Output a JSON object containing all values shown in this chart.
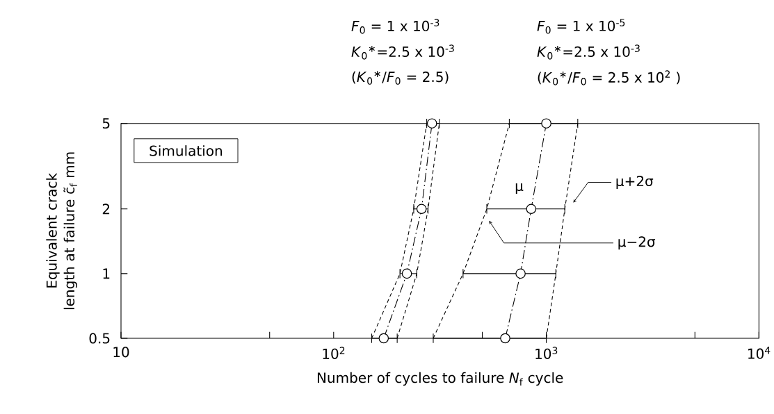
{
  "chart_data": {
    "type": "line",
    "xlabel": "Number of  cycles to failure  *N*$_{f}$   cycle",
    "ylabel": "Equivalent  crack  length at  failure  c̃$_{f}$   mm",
    "log": "xy",
    "xlim": [
      10,
      10000
    ],
    "ylim": [
      0.5,
      5
    ],
    "xticks": [
      10,
      {
        "value": 100,
        "label": "10$^{2}$"
      },
      {
        "value": 1000,
        "label": "10$^{3}$"
      },
      {
        "value": 10000,
        "label": "10$^{4}$"
      },
      {
        "value": 50,
        "label": null
      },
      {
        "value": 500,
        "label": null
      },
      {
        "value": 5000,
        "label": null
      }
    ],
    "yticks": [
      0.5,
      1,
      2,
      5
    ],
    "series": [
      {
        "line_style": "dashed",
        "marker": "none",
        "color": "#000000",
        "x": [
          151,
          205,
          238,
          274
        ],
        "values": [
          0.5,
          1,
          2,
          5
        ]
      },
      {
        "line_style": "dashdot",
        "marker": "circle",
        "color": "#000000",
        "x": [
          172,
          221,
          259,
          290
        ],
        "values": [
          0.5,
          1,
          2,
          5
        ],
        "xerrors": [
          [
            151,
            199
          ],
          [
            205,
            246
          ],
          [
            238,
            278
          ],
          [
            274,
            314
          ]
        ]
      },
      {
        "line_style": "dashed",
        "marker": "none",
        "color": "#000000",
        "x": [
          199,
          246,
          278,
          314
        ],
        "values": [
          0.5,
          1,
          2,
          5
        ]
      },
      {
        "line_style": "dashed",
        "marker": "none",
        "color": "#000000",
        "x": [
          294,
          406,
          525,
          670
        ],
        "values": [
          0.5,
          1,
          2,
          5
        ]
      },
      {
        "line_style": "dashdot",
        "marker": "circle",
        "color": "#000000",
        "x": [
          641,
          757,
          849,
          1000
        ],
        "values": [
          0.5,
          1,
          2,
          5
        ],
        "xerrors": [
          [
            294,
            1000
          ],
          [
            406,
            1109
          ],
          [
            525,
            1222
          ],
          [
            670,
            1406
          ]
        ]
      },
      {
        "line_style": "dashed",
        "marker": "none",
        "color": "#000000",
        "x": [
          1000,
          1109,
          1222,
          1406
        ],
        "values": [
          0.5,
          1,
          2,
          5
        ]
      }
    ],
    "annotations": [
      "Simulation",
      "*F*$_{0}$ = 1 x 10$^{-3}$",
      "*K*$_{0}$$^{∗}$=2.5 x 10$^{-3}$",
      "(*K*$_{0}$$^{∗}$/*F*$_{0}$ = 2.5)",
      "*F*$_{0}$ = 1 x 10$^{-5}$",
      "*K*$_{0}$$^{∗}$=2.5 x 10$^{-3}$",
      "(*K*$_{0}$$^{∗}$/*F*$_{0}$ = 2.5 x 10$^{2}$ )",
      {
        "text": "μ",
        "x": 849,
        "y": 2
      },
      "μ+2σ",
      "μ−2σ"
    ]
  }
}
